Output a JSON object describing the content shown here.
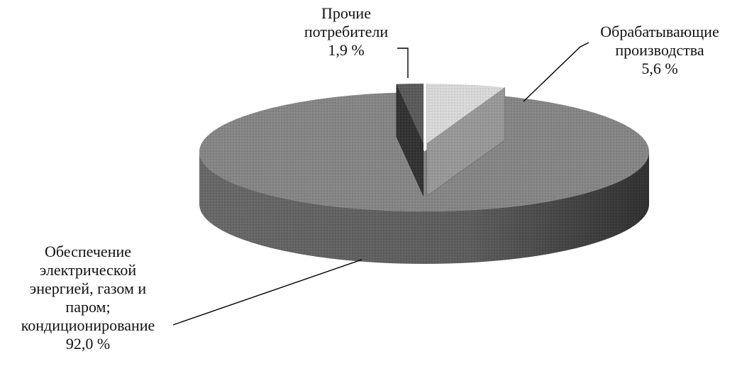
{
  "chart_data": {
    "type": "pie",
    "three_d": true,
    "start_angle_deg": 0,
    "direction": "clockwise",
    "slices": [
      {
        "label_lines": [
          "Обрабатывающие",
          "производства"
        ],
        "value_text": "5,6 %",
        "value": 5.6,
        "color": "#d9d9d9",
        "exploded": true
      },
      {
        "label_lines": [
          "Обеспечение",
          "электрической",
          "энергией, газом и",
          "паром;",
          "кондиционирование"
        ],
        "value_text": "92,0 %",
        "value": 92.0,
        "color": "#858585",
        "exploded": false
      },
      {
        "label_lines": [
          "Прочие",
          "потребители"
        ],
        "value_text": "1,9 %",
        "value": 1.9,
        "color": "#5a5a5a",
        "exploded": true
      }
    ],
    "title": "",
    "legend": "none"
  }
}
